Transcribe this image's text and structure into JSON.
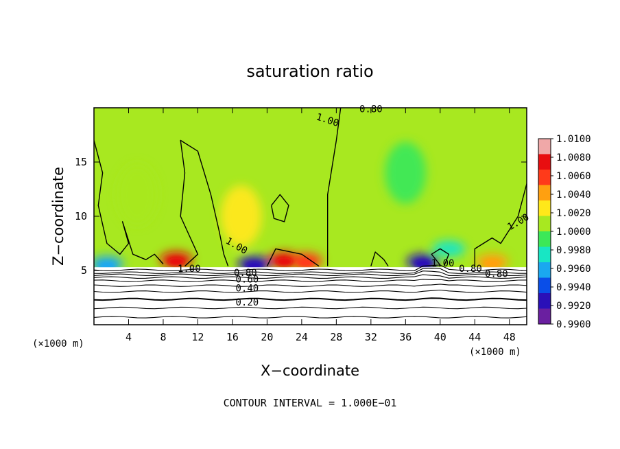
{
  "chart_data": {
    "type": "heatmap",
    "title": "saturation ratio",
    "xlabel": "X−coordinate",
    "ylabel": "Z−coordinate",
    "x_unit_left": "(×1000 m)",
    "x_unit_right": "(×1000 m)",
    "footer": "CONTOUR INTERVAL = 1.000E−01",
    "xlim": [
      0,
      50
    ],
    "ylim": [
      0,
      20
    ],
    "x_ticks": [
      4,
      8,
      12,
      16,
      20,
      24,
      28,
      32,
      36,
      40,
      44,
      48
    ],
    "y_ticks": [
      5,
      10,
      15
    ],
    "colorbar": {
      "range": [
        0.99,
        1.01
      ],
      "labels": [
        "1.0100",
        "1.0080",
        "1.0060",
        "1.0040",
        "1.0020",
        "1.0000",
        "0.9980",
        "0.9960",
        "0.9940",
        "0.9920",
        "0.9900"
      ],
      "colors": [
        "#6a1fa0",
        "#2a10b8",
        "#0a4ee8",
        "#1aa8f0",
        "#18e6c4",
        "#3ce858",
        "#a8e820",
        "#ffe81a",
        "#ffa010",
        "#ff3a1a",
        "#e80e10",
        "#f0a8a8"
      ]
    },
    "cloud_base_z": 5.3,
    "contour_interval": 0.1,
    "contour_labels": [
      "1.00",
      "1.00",
      "1.00",
      "1.00",
      "0.80",
      "0.80",
      "0.80",
      "0.60",
      "0.40",
      "0.20",
      "1.00",
      "0.80"
    ],
    "lower_contour_levels_z": [
      5.05,
      4.8,
      4.6,
      4.35,
      4.05,
      3.6,
      3.05,
      2.35,
      1.55,
      0.7
    ],
    "warm_spots": [
      {
        "x": 9.5,
        "z": 6.0,
        "value": 1.008
      },
      {
        "x": 22.0,
        "z": 6.0,
        "value": 1.008
      },
      {
        "x": 24.5,
        "z": 5.9,
        "value": 1.006
      },
      {
        "x": 46.0,
        "z": 5.8,
        "value": 1.005
      },
      {
        "x": 17.0,
        "z": 10.0,
        "value": 1.003
      },
      {
        "x": 5.0,
        "z": 12.0,
        "value": 1.0015
      }
    ],
    "cool_spots": [
      {
        "x": 18.5,
        "z": 5.6,
        "value": 0.992
      },
      {
        "x": 38.0,
        "z": 5.8,
        "value": 0.993
      },
      {
        "x": 1.5,
        "z": 5.6,
        "value": 0.995
      },
      {
        "x": 41.0,
        "z": 7.0,
        "value": 0.997
      },
      {
        "x": 36.0,
        "z": 14.0,
        "value": 0.9985
      }
    ]
  }
}
